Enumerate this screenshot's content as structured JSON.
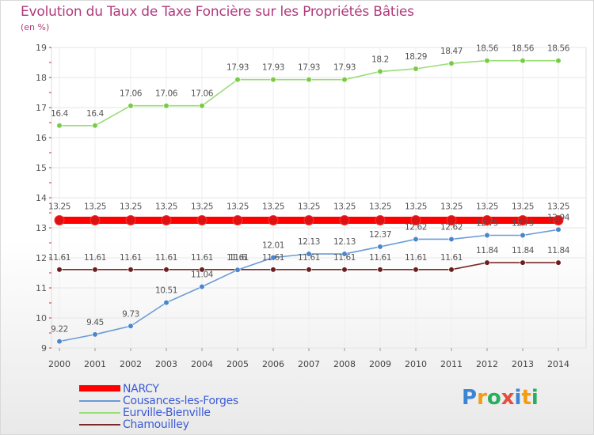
{
  "header": {
    "title": "Evolution du Taux de Taxe Foncière sur les Propriétés Bâties",
    "subtitle": "(en %)"
  },
  "brand": {
    "letters": [
      "P",
      "r",
      "o",
      "x",
      "i",
      "t",
      "i"
    ],
    "colors": [
      "#3a86d4",
      "#f39c12",
      "#27ae60",
      "#e74c3c",
      "#3a86d4",
      "#f39c12",
      "#27ae60"
    ]
  },
  "chart_data": {
    "type": "line",
    "title": "Evolution du Taux de Taxe Foncière sur les Propriétés Bâties",
    "ylabel": "(en %)",
    "xlabel": "",
    "ylim": [
      9,
      19
    ],
    "yticks": [
      9,
      10,
      11,
      12,
      13,
      14,
      15,
      16,
      17,
      18,
      19
    ],
    "categories": [
      "2000",
      "2001",
      "2002",
      "2003",
      "2004",
      "2005",
      "2006",
      "2007",
      "2008",
      "2009",
      "2010",
      "2011",
      "2012",
      "2013",
      "2014"
    ],
    "series": [
      {
        "name": "NARCY",
        "color": "#ff0000",
        "marker": "#dd1111",
        "thick": true,
        "values": [
          13.25,
          13.25,
          13.25,
          13.25,
          13.25,
          13.25,
          13.25,
          13.25,
          13.25,
          13.25,
          13.25,
          13.25,
          13.25,
          13.25,
          13.25
        ],
        "labels": [
          "13.25",
          "13.25",
          "13.25",
          "13.25",
          "13.25",
          "13.25",
          "13.25",
          "13.25",
          "13.25",
          "13.25",
          "13.25",
          "13.25",
          "13.25",
          "13.25",
          "13.25"
        ]
      },
      {
        "name": "Cousances-les-Forges",
        "color": "#6a9bd8",
        "marker": "#4a86cc",
        "thick": false,
        "values": [
          9.22,
          9.45,
          9.73,
          10.51,
          11.04,
          11.6,
          12.01,
          12.13,
          12.13,
          12.37,
          12.62,
          12.62,
          12.75,
          12.75,
          12.94
        ],
        "labels": [
          "9.22",
          "9.45",
          "9.73",
          "10.51",
          "11.04",
          "11.6",
          "12.01",
          "12.13",
          "12.13",
          "12.37",
          "12.62",
          "12.62",
          "12.75",
          "12.75",
          "12.94"
        ]
      },
      {
        "name": "Eurville-Bienville",
        "color": "#99dd77",
        "marker": "#77cc44",
        "thick": false,
        "values": [
          16.4,
          16.4,
          17.06,
          17.06,
          17.06,
          17.93,
          17.93,
          17.93,
          17.93,
          18.2,
          18.29,
          18.47,
          18.56,
          18.56,
          18.56
        ],
        "labels": [
          "16.4",
          "16.4",
          "17.06",
          "17.06",
          "17.06",
          "17.93",
          "17.93",
          "17.93",
          "17.93",
          "18.2",
          "18.29",
          "18.47",
          "18.56",
          "18.56",
          "18.56"
        ]
      },
      {
        "name": "Chamouilley",
        "color": "#7a2a2a",
        "marker": "#6a1f1f",
        "thick": false,
        "values": [
          11.61,
          11.61,
          11.61,
          11.61,
          11.61,
          11.61,
          11.61,
          11.61,
          11.61,
          11.61,
          11.61,
          11.61,
          11.84,
          11.84,
          11.84
        ],
        "labels": [
          "11.61",
          "11.61",
          "11.61",
          "11.61",
          "11.61",
          "11.61",
          "11.61",
          "11.61",
          "11.61",
          "11.61",
          "11.61",
          "11.61",
          "11.84",
          "11.84",
          "11.84"
        ]
      }
    ]
  }
}
